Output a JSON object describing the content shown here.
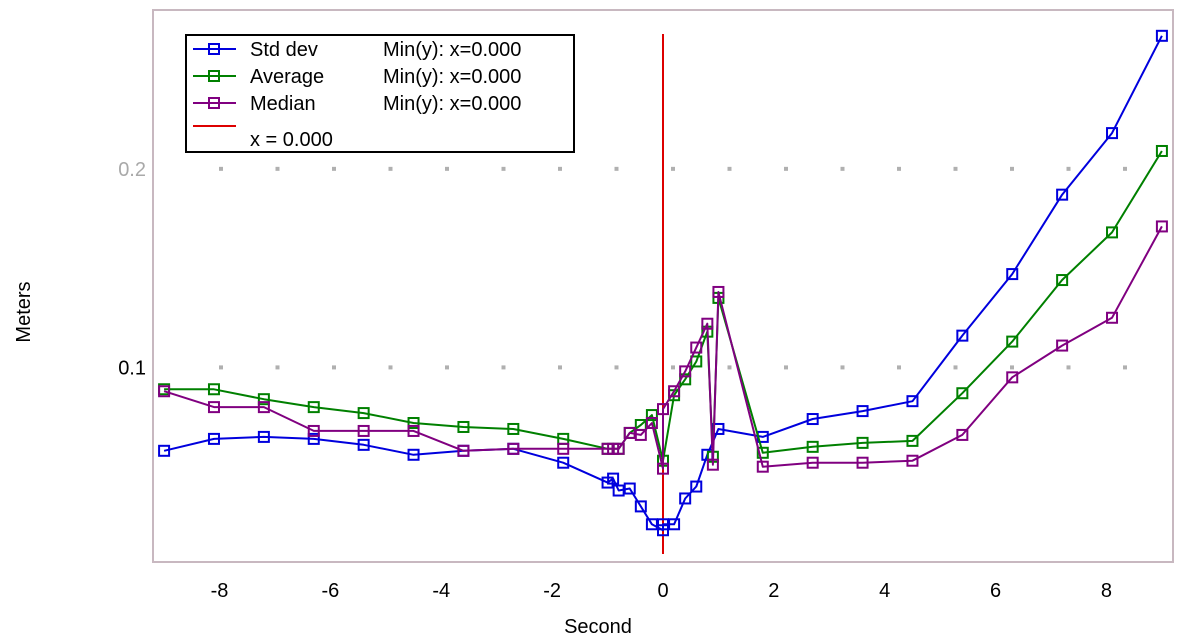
{
  "chart_data": {
    "type": "line",
    "xlabel": "Second",
    "ylabel": "Meters",
    "xlim": [
      -9.2,
      9.2
    ],
    "ylim": [
      0.002,
      0.28
    ],
    "xticks": [
      -8,
      -6,
      -4,
      -2,
      0,
      2,
      4,
      6,
      8
    ],
    "xtick_labels": [
      "-8",
      "-6",
      "-4",
      "-2",
      "0",
      "2",
      "4",
      "6",
      "8"
    ],
    "yticks": [
      0.1,
      0.2
    ],
    "ytick_labels": [
      "0.1",
      "0.2"
    ],
    "ytick_colors": [
      "#000000",
      "#a9a9a9"
    ],
    "grid": "dotted",
    "legend_position": "top-left",
    "vline": {
      "x": 0.0,
      "label": "x = 0.000",
      "color": "#dd0000"
    },
    "series": [
      {
        "name": "Std dev",
        "legend_note": "Min(y): x=0.000",
        "color": "#0000dd",
        "x": [
          -9.0,
          -8.1,
          -7.2,
          -6.3,
          -5.4,
          -4.5,
          -3.6,
          -2.7,
          -1.8,
          -1.0,
          -0.9,
          -0.8,
          -0.6,
          -0.4,
          -0.2,
          0.0,
          0.0,
          0.2,
          0.4,
          0.6,
          0.8,
          1.0,
          1.8,
          2.7,
          3.6,
          4.5,
          5.4,
          6.3,
          7.2,
          8.1,
          9.0
        ],
        "y": [
          0.058,
          0.064,
          0.065,
          0.064,
          0.061,
          0.056,
          0.058,
          0.059,
          0.052,
          0.042,
          0.044,
          0.038,
          0.039,
          0.03,
          0.021,
          0.018,
          0.021,
          0.021,
          0.034,
          0.04,
          0.056,
          0.069,
          0.065,
          0.074,
          0.078,
          0.083,
          0.116,
          0.147,
          0.187,
          0.218,
          0.267
        ]
      },
      {
        "name": "Average",
        "legend_note": "Min(y): x=0.000",
        "color": "#008000",
        "x": [
          -9.0,
          -8.1,
          -7.2,
          -6.3,
          -5.4,
          -4.5,
          -3.6,
          -2.7,
          -1.8,
          -1.0,
          -0.8,
          -0.6,
          -0.4,
          -0.2,
          0.0,
          0.2,
          0.4,
          0.6,
          0.8,
          0.9,
          1.0,
          1.8,
          2.7,
          3.6,
          4.5,
          5.4,
          6.3,
          7.2,
          8.1,
          9.0
        ],
        "y": [
          0.089,
          0.089,
          0.084,
          0.08,
          0.077,
          0.072,
          0.07,
          0.069,
          0.064,
          0.059,
          0.059,
          0.067,
          0.071,
          0.076,
          0.053,
          0.086,
          0.094,
          0.103,
          0.118,
          0.055,
          0.135,
          0.057,
          0.06,
          0.062,
          0.063,
          0.087,
          0.113,
          0.144,
          0.168,
          0.209
        ]
      },
      {
        "name": "Median",
        "legend_note": "Min(y): x=0.000",
        "color": "#800080",
        "x": [
          -9.0,
          -8.1,
          -7.2,
          -6.3,
          -5.4,
          -4.5,
          -3.6,
          -2.7,
          -1.8,
          -1.0,
          -0.9,
          -0.8,
          -0.6,
          -0.4,
          -0.2,
          0.0,
          0.0,
          0.2,
          0.4,
          0.6,
          0.8,
          0.9,
          1.0,
          1.8,
          2.7,
          3.6,
          4.5,
          5.4,
          6.3,
          7.2,
          8.1,
          9.0
        ],
        "y": [
          0.088,
          0.08,
          0.08,
          0.068,
          0.068,
          0.068,
          0.058,
          0.059,
          0.059,
          0.059,
          0.059,
          0.059,
          0.067,
          0.066,
          0.072,
          0.049,
          0.079,
          0.088,
          0.098,
          0.11,
          0.122,
          0.051,
          0.138,
          0.05,
          0.052,
          0.052,
          0.053,
          0.066,
          0.095,
          0.111,
          0.125,
          0.171
        ]
      }
    ]
  }
}
